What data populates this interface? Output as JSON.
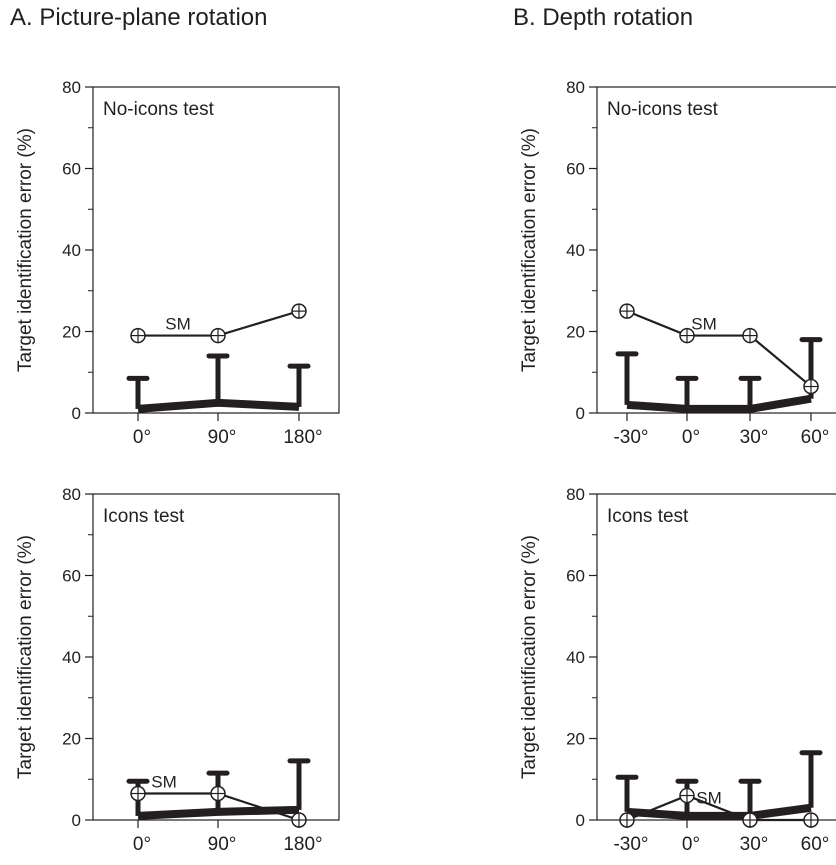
{
  "panel_titles": [
    "A. Picture-plane rotation",
    "B. Depth rotation"
  ],
  "chart_data": [
    {
      "type": "line",
      "panel": "A",
      "inset_label": "No-icons test",
      "ylabel": "Target identification error (%)",
      "ylim": [
        0,
        80
      ],
      "yticks": [
        0,
        20,
        40,
        60,
        80
      ],
      "categories": [
        "0°",
        "90°",
        "180°"
      ],
      "series": [
        {
          "name": "SM",
          "style": "open-circle-cross",
          "values": [
            19,
            19,
            25
          ]
        },
        {
          "name": "",
          "style": "thick-line-errorbars",
          "values": [
            1,
            2.5,
            1.5
          ],
          "error_upper": [
            8.5,
            14,
            11.5
          ]
        }
      ]
    },
    {
      "type": "line",
      "panel": "B",
      "inset_label": "No-icons test",
      "ylabel": "Target identification error (%)",
      "ylim": [
        0,
        80
      ],
      "yticks": [
        0,
        20,
        40,
        60,
        80
      ],
      "categories": [
        "-30°",
        "0°",
        "30°",
        "60°"
      ],
      "series": [
        {
          "name": "SM",
          "style": "open-circle-cross",
          "values": [
            25,
            19,
            19,
            6.5
          ]
        },
        {
          "name": "",
          "style": "thick-line-errorbars",
          "values": [
            2,
            1,
            1,
            3.5
          ],
          "error_upper": [
            14.5,
            8.5,
            8.5,
            18
          ]
        }
      ]
    },
    {
      "type": "line",
      "panel": "A",
      "inset_label": "Icons test",
      "ylabel": "Target identification error (%)",
      "ylim": [
        0,
        80
      ],
      "yticks": [
        0,
        20,
        40,
        60,
        80
      ],
      "categories": [
        "0°",
        "90°",
        "180°"
      ],
      "series": [
        {
          "name": "SM",
          "style": "open-circle-cross",
          "values": [
            6.5,
            6.5,
            0
          ]
        },
        {
          "name": "",
          "style": "thick-line-errorbars",
          "values": [
            1,
            2,
            2.5
          ],
          "error_upper": [
            9.5,
            11.5,
            14.5
          ]
        }
      ]
    },
    {
      "type": "line",
      "panel": "B",
      "inset_label": "Icons test",
      "ylabel": "Target identification error (%)",
      "ylim": [
        0,
        80
      ],
      "yticks": [
        0,
        20,
        40,
        60,
        80
      ],
      "categories": [
        "-30°",
        "0°",
        "30°",
        "60°"
      ],
      "series": [
        {
          "name": "SM",
          "style": "open-circle-cross",
          "values": [
            0,
            6,
            0,
            0
          ]
        },
        {
          "name": "",
          "style": "thick-line-errorbars",
          "values": [
            2,
            1,
            1,
            3
          ],
          "error_upper": [
            10.5,
            9.5,
            9.5,
            16.5
          ]
        }
      ]
    }
  ]
}
